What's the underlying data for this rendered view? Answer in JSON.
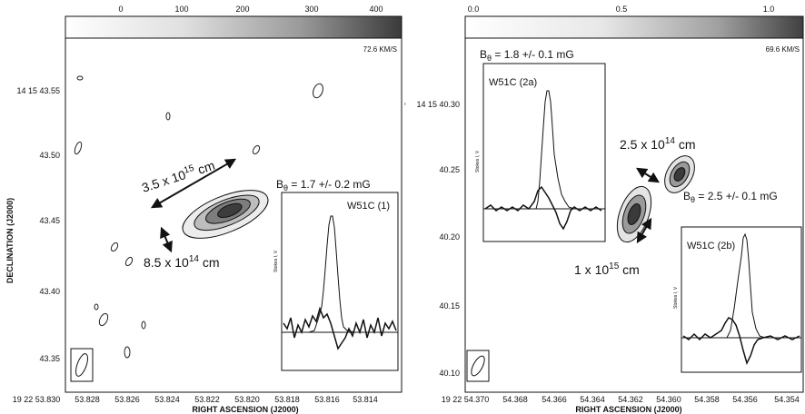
{
  "panels": [
    {
      "colorbar_ticks": [
        "0",
        "100",
        "200",
        "300",
        "400"
      ],
      "velocity": "72.6 KM/S",
      "dec_ticks": [
        "14 15 43.55",
        "43.50",
        "43.45",
        "43.40",
        "43.35"
      ],
      "ra_ticks": [
        "19 22 53.830",
        "53.828",
        "53.826",
        "53.824",
        "53.822",
        "53.820",
        "53.818",
        "53.816",
        "53.814"
      ],
      "ylabel": "DECLINATION (J2000)",
      "xlabel": "RIGHT ASCENSION (J2000)",
      "size_major": "3.5 x 10",
      "size_major_exp": "15",
      "size_major_unit": " cm",
      "size_minor": "8.5 x 10",
      "size_minor_exp": "14",
      "size_minor_unit": " cm",
      "inset": {
        "field_prefix": "B",
        "field_sub": "θ",
        "field_value": " = 1.7 +/- 0.2 mG",
        "label": "W51C (1)"
      }
    },
    {
      "colorbar_ticks": [
        "0.0",
        "0.5",
        "1.0"
      ],
      "velocity": "69.6 KM/S",
      "dec_ticks": [
        "14 15 40.30",
        "40.25",
        "40.20",
        "40.15",
        "40.10"
      ],
      "ra_ticks": [
        "19 22 54.370",
        "54.368",
        "54.366",
        "54.364",
        "54.362",
        "54.360",
        "54.358",
        "54.356",
        "54.354"
      ],
      "xlabel": "RIGHT ASCENSION (J2000)",
      "size_a": "2.5 x 10",
      "size_a_exp": "14",
      "size_a_unit": " cm",
      "size_b": "1 x 10",
      "size_b_exp": "15",
      "size_b_unit": " cm",
      "inset_a": {
        "field_prefix": "B",
        "field_sub": "θ",
        "field_value": " = 1.8 +/- 0.1 mG",
        "label": "W51C (2a)"
      },
      "inset_b": {
        "field_prefix": "B",
        "field_sub": "θ",
        "field_value": " = 2.5 +/- 0.1 mG",
        "label": "W51C (2b)"
      }
    }
  ]
}
